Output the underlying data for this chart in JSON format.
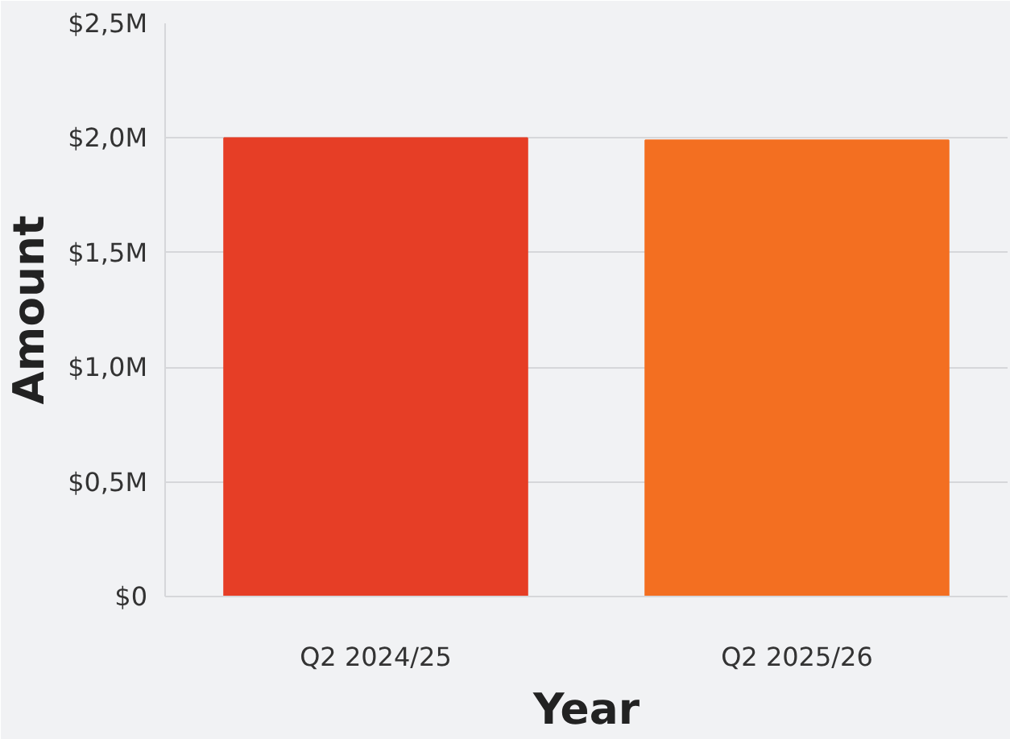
{
  "chart_data": {
    "type": "bar",
    "xlabel": "Year",
    "ylabel": "Amount",
    "categories": [
      "Q2 2024/25",
      "Q2 2025/26"
    ],
    "values": [
      2.0,
      1.99
    ],
    "colors": [
      "#e63e26",
      "#f36f21"
    ],
    "ylim": [
      0,
      2.5
    ],
    "yticks": [
      {
        "value": 0,
        "label": "$0"
      },
      {
        "value": 0.5,
        "label": "$0,5M"
      },
      {
        "value": 1.0,
        "label": "$1,0M"
      },
      {
        "value": 1.5,
        "label": "$1,5M"
      },
      {
        "value": 2.0,
        "label": "$2,0M"
      },
      {
        "value": 2.5,
        "label": "$2,5M"
      }
    ],
    "grid": "y"
  }
}
